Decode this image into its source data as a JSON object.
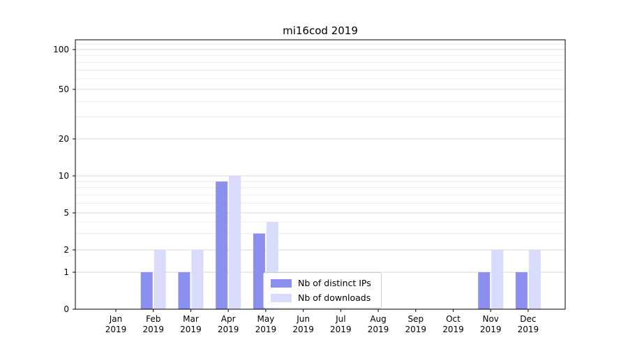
{
  "chart_data": {
    "type": "bar",
    "title": "mi16cod 2019",
    "scale": "symlog",
    "grid": true,
    "legend_position": "lower center",
    "categories": [
      "Jan",
      "Feb",
      "Mar",
      "Apr",
      "May",
      "Jun",
      "Jul",
      "Aug",
      "Sep",
      "Oct",
      "Nov",
      "Dec"
    ],
    "category_year": "2019",
    "series": [
      {
        "key": "distinct-ips",
        "name": "Nb of distinct IPs",
        "color": "#8b8fee",
        "values": [
          0,
          1,
          1,
          9,
          3,
          0,
          0,
          0,
          0,
          0,
          1,
          1
        ]
      },
      {
        "key": "downloads",
        "name": "Nb of downloads",
        "color": "#d8dbf9",
        "values": [
          0,
          2,
          2,
          10,
          4,
          0,
          0,
          0,
          0,
          0,
          2,
          2
        ]
      }
    ],
    "yticks": [
      0,
      1,
      2,
      5,
      10,
      20,
      50,
      100
    ],
    "minor_gridlines": [
      3,
      4,
      6,
      7,
      8,
      9,
      30,
      40,
      60,
      70,
      80,
      90,
      110
    ],
    "ylim": [
      0,
      115
    ]
  },
  "style": {
    "grid_major": "#d9d9d9",
    "grid_minor": "#e9e9e9",
    "axis": "#000000",
    "legend_border": "#cccccc",
    "background": "#ffffff"
  }
}
